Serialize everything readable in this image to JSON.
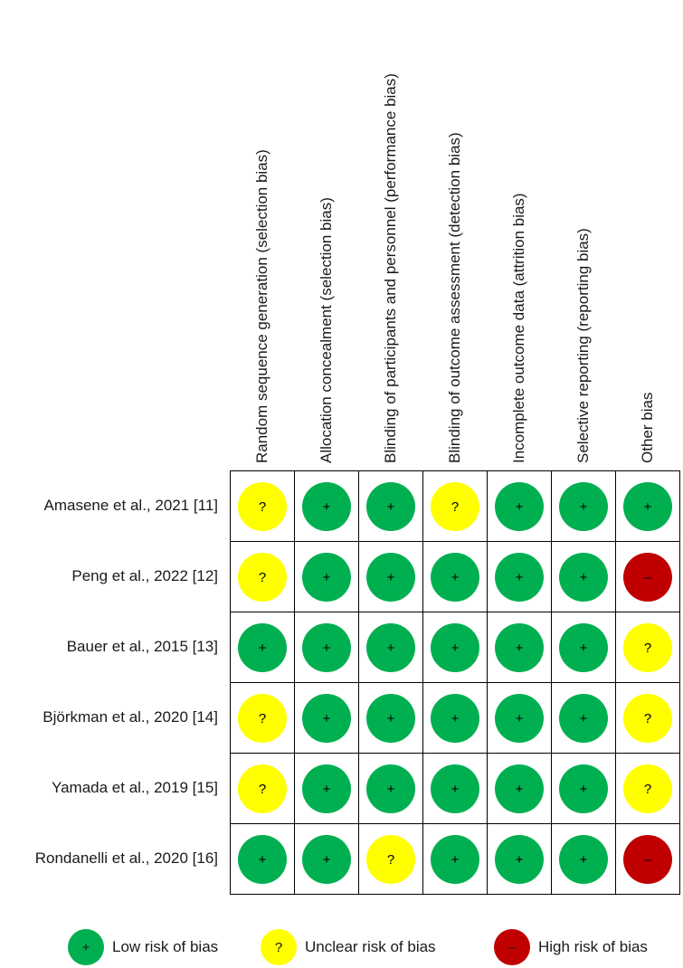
{
  "chart_data": {
    "type": "table",
    "columns": [
      "Random sequence generation (selection bias)",
      "Allocation concealment (selection bias)",
      "Blinding of participants and personnel (performance bias)",
      "Blinding of outcome assessment (detection bias)",
      "Incomplete outcome data (attrition bias)",
      "Selective reporting (reporting bias)",
      "Other bias"
    ],
    "rows": [
      {
        "study": "Amasene et al., 2021 [11]",
        "ratings": [
          "unclear",
          "low",
          "low",
          "unclear",
          "low",
          "low",
          "low"
        ]
      },
      {
        "study": "Peng et al., 2022 [12]",
        "ratings": [
          "unclear",
          "low",
          "low",
          "low",
          "low",
          "low",
          "high"
        ]
      },
      {
        "study": "Bauer et al., 2015 [13]",
        "ratings": [
          "low",
          "low",
          "low",
          "low",
          "low",
          "low",
          "unclear"
        ]
      },
      {
        "study": "Björkman et al., 2020 [14]",
        "ratings": [
          "unclear",
          "low",
          "low",
          "low",
          "low",
          "low",
          "unclear"
        ]
      },
      {
        "study": "Yamada et al., 2019 [15]",
        "ratings": [
          "unclear",
          "low",
          "low",
          "low",
          "low",
          "low",
          "unclear"
        ]
      },
      {
        "study": "Rondanelli et al., 2020 [16]",
        "ratings": [
          "low",
          "low",
          "unclear",
          "low",
          "low",
          "low",
          "high"
        ]
      }
    ],
    "symbols": {
      "low": "+",
      "unclear": "?",
      "high": "–"
    },
    "colors": {
      "low": "#00b050",
      "unclear": "#ffff00",
      "high": "#c00000"
    },
    "legend": [
      {
        "key": "low",
        "symbol": "+",
        "label": "Low risk of bias"
      },
      {
        "key": "unclear",
        "symbol": "?",
        "label": "Unclear risk of bias"
      },
      {
        "key": "high",
        "symbol": "–",
        "label": "High risk of bias"
      }
    ]
  }
}
